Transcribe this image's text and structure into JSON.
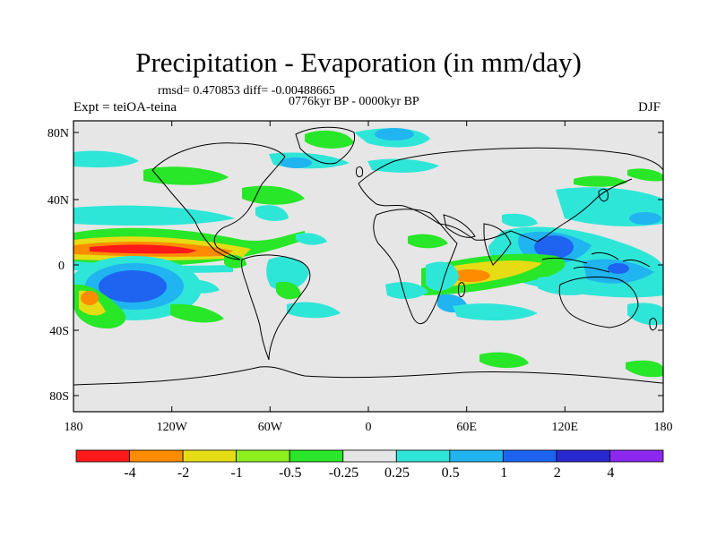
{
  "header": {
    "title": "Precipitation - Evaporation (in mm/day)",
    "stats": "rmsd= 0.470853  diff= -0.00488665",
    "period": "0776kyr BP - 0000kyr BP",
    "experiment": "Expt = teiOA-teina",
    "season": "DJF"
  },
  "axes": {
    "lon_labels": [
      "180",
      "120W",
      "60W",
      "0",
      "60E",
      "120E",
      "180"
    ],
    "lat_labels": [
      "80N",
      "40N",
      "0",
      "40S",
      "80S"
    ]
  },
  "legend": {
    "labels": [
      "-4",
      "-2",
      "-1",
      "-0.5",
      "-0.25",
      "0.25",
      "0.5",
      "1",
      "2",
      "4"
    ],
    "colors": [
      "#ff1a1a",
      "#ff8c00",
      "#e6dc14",
      "#8cf01e",
      "#28e628",
      "#e6e6e6",
      "#2ee6d8",
      "#20b4f0",
      "#1e64f0",
      "#2828d2",
      "#8c28f0"
    ]
  },
  "colors": {
    "background_field": "#e6e6e6",
    "coast": "#000000"
  }
}
